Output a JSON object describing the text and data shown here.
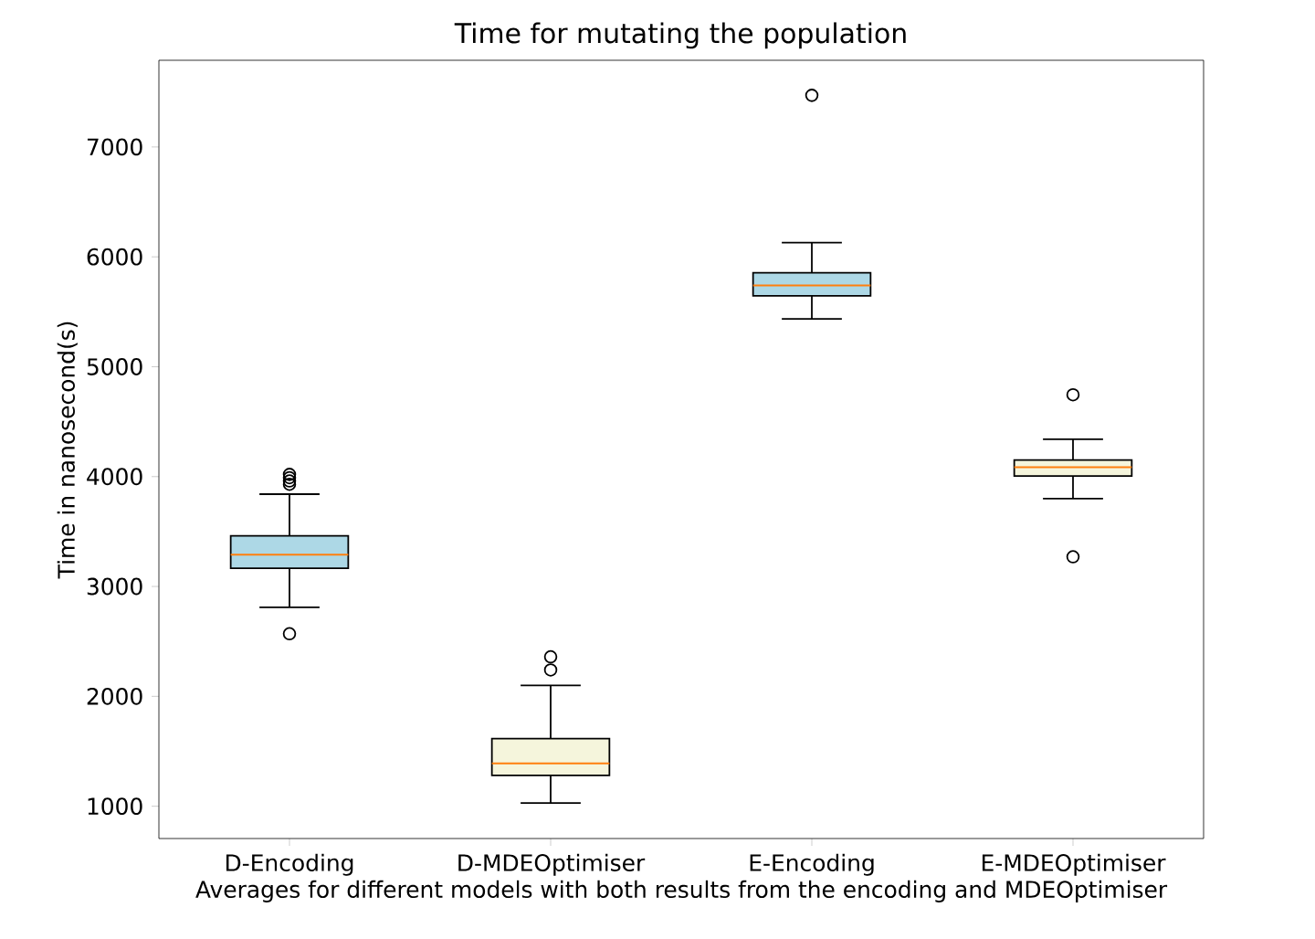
{
  "chart_data": {
    "type": "box",
    "title": "Time for mutating the population",
    "xlabel": "Averages for different models with both results from the encoding and MDEOptimiser",
    "ylabel": "Time in nanosecond(s)",
    "categories": [
      "D-Encoding",
      "D-MDEOptimiser",
      "E-Encoding",
      "E-MDEOptimiser"
    ],
    "colors": [
      "#add8e6",
      "#f5f5dc",
      "#add8e6",
      "#f5f5dc"
    ],
    "boxes": [
      {
        "low": 2810,
        "q1": 3165,
        "median": 3290,
        "q3": 3460,
        "high": 3840,
        "outliers": [
          2570,
          3930,
          3960,
          3990,
          4020
        ]
      },
      {
        "low": 1030,
        "q1": 1280,
        "median": 1390,
        "q3": 1615,
        "high": 2100,
        "outliers": [
          2240,
          2360
        ]
      },
      {
        "low": 5435,
        "q1": 5645,
        "median": 5740,
        "q3": 5855,
        "high": 6130,
        "outliers": [
          7470
        ]
      },
      {
        "low": 3800,
        "q1": 4005,
        "median": 4085,
        "q3": 4150,
        "high": 4340,
        "outliers": [
          3270,
          4745
        ]
      }
    ],
    "ylim": [
      706,
      7789
    ],
    "yticks": [
      1000,
      2000,
      3000,
      4000,
      5000,
      6000,
      7000
    ]
  }
}
